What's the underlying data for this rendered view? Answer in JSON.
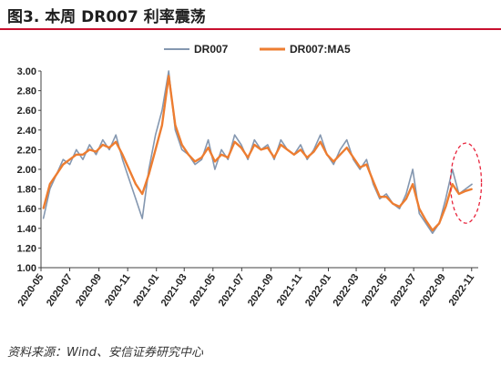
{
  "figure": {
    "title": "图3. 本周 DR007 利率震荡",
    "source": "资料来源：Wind、安信证券研究中心"
  },
  "colors": {
    "accent_rule": "#c8102e",
    "dr007": "#8497b0",
    "ma5": "#ed7d31",
    "highlight": "#e8243c"
  },
  "chart_data": {
    "type": "line",
    "title": "",
    "xlabel": "",
    "ylabel": "",
    "ylim": [
      1.0,
      3.0
    ],
    "yticks": [
      "3.00",
      "2.80",
      "2.60",
      "2.40",
      "2.20",
      "2.00",
      "1.80",
      "1.60",
      "1.40",
      "1.20",
      "1.00"
    ],
    "xticks": [
      "2020-05",
      "2020-07",
      "2020-09",
      "2020-11",
      "2021-01",
      "2021-03",
      "2021-05",
      "2021-07",
      "2021-09",
      "2021-11",
      "2022-01",
      "2022-03",
      "2022-05",
      "2022-07",
      "2022-09",
      "2022-11"
    ],
    "x_range": [
      "2020-05",
      "2022-11"
    ],
    "grid": false,
    "legend": "top-center",
    "series": [
      {
        "name": "DR007",
        "color": "#8497b0",
        "x": [
          "2020-05-06",
          "2020-05-20",
          "2020-06-03",
          "2020-06-17",
          "2020-07-01",
          "2020-07-15",
          "2020-07-29",
          "2020-08-12",
          "2020-08-26",
          "2020-09-09",
          "2020-09-23",
          "2020-10-07",
          "2020-10-21",
          "2020-11-04",
          "2020-11-18",
          "2020-12-02",
          "2020-12-16",
          "2020-12-30",
          "2021-01-13",
          "2021-01-27",
          "2021-02-10",
          "2021-02-24",
          "2021-03-10",
          "2021-03-24",
          "2021-04-07",
          "2021-04-21",
          "2021-05-05",
          "2021-05-19",
          "2021-06-02",
          "2021-06-16",
          "2021-06-30",
          "2021-07-14",
          "2021-07-28",
          "2021-08-11",
          "2021-08-25",
          "2021-09-08",
          "2021-09-22",
          "2021-10-06",
          "2021-10-20",
          "2021-11-03",
          "2021-11-17",
          "2021-12-01",
          "2021-12-15",
          "2021-12-29",
          "2022-01-12",
          "2022-01-26",
          "2022-02-09",
          "2022-02-23",
          "2022-03-09",
          "2022-03-23",
          "2022-04-06",
          "2022-04-20",
          "2022-05-04",
          "2022-05-18",
          "2022-06-01",
          "2022-06-15",
          "2022-06-29",
          "2022-07-13",
          "2022-07-27",
          "2022-08-10",
          "2022-08-24",
          "2022-09-07",
          "2022-09-21",
          "2022-10-05",
          "2022-10-19",
          "2022-11-02"
        ],
        "values": [
          1.5,
          1.8,
          1.95,
          2.1,
          2.05,
          2.2,
          2.1,
          2.25,
          2.15,
          2.3,
          2.2,
          2.35,
          2.1,
          1.9,
          1.7,
          1.5,
          2.0,
          2.35,
          2.6,
          3.0,
          2.4,
          2.2,
          2.15,
          2.05,
          2.1,
          2.3,
          2.0,
          2.2,
          2.1,
          2.35,
          2.25,
          2.1,
          2.3,
          2.2,
          2.25,
          2.1,
          2.3,
          2.2,
          2.15,
          2.25,
          2.1,
          2.2,
          2.35,
          2.15,
          2.05,
          2.2,
          2.3,
          2.1,
          2.0,
          2.1,
          1.85,
          1.7,
          1.75,
          1.65,
          1.6,
          1.75,
          2.0,
          1.55,
          1.45,
          1.35,
          1.45,
          1.7,
          2.0,
          1.75,
          1.8,
          1.85
        ]
      },
      {
        "name": "DR007:MA5",
        "color": "#ed7d31",
        "x": [
          "2020-05-06",
          "2020-05-20",
          "2020-06-03",
          "2020-06-17",
          "2020-07-01",
          "2020-07-15",
          "2020-07-29",
          "2020-08-12",
          "2020-08-26",
          "2020-09-09",
          "2020-09-23",
          "2020-10-07",
          "2020-10-21",
          "2020-11-04",
          "2020-11-18",
          "2020-12-02",
          "2020-12-16",
          "2020-12-30",
          "2021-01-13",
          "2021-01-27",
          "2021-02-10",
          "2021-02-24",
          "2021-03-10",
          "2021-03-24",
          "2021-04-07",
          "2021-04-21",
          "2021-05-05",
          "2021-05-19",
          "2021-06-02",
          "2021-06-16",
          "2021-06-30",
          "2021-07-14",
          "2021-07-28",
          "2021-08-11",
          "2021-08-25",
          "2021-09-08",
          "2021-09-22",
          "2021-10-06",
          "2021-10-20",
          "2021-11-03",
          "2021-11-17",
          "2021-12-01",
          "2021-12-15",
          "2021-12-29",
          "2022-01-12",
          "2022-01-26",
          "2022-02-09",
          "2022-02-23",
          "2022-03-09",
          "2022-03-23",
          "2022-04-06",
          "2022-04-20",
          "2022-05-04",
          "2022-05-18",
          "2022-06-01",
          "2022-06-15",
          "2022-06-29",
          "2022-07-13",
          "2022-07-27",
          "2022-08-10",
          "2022-08-24",
          "2022-09-07",
          "2022-09-21",
          "2022-10-05",
          "2022-10-19",
          "2022-11-02"
        ],
        "values": [
          1.6,
          1.85,
          1.95,
          2.05,
          2.1,
          2.15,
          2.15,
          2.2,
          2.18,
          2.25,
          2.22,
          2.28,
          2.15,
          2.0,
          1.85,
          1.75,
          1.95,
          2.2,
          2.45,
          2.95,
          2.45,
          2.25,
          2.15,
          2.08,
          2.12,
          2.22,
          2.08,
          2.15,
          2.12,
          2.28,
          2.22,
          2.12,
          2.25,
          2.2,
          2.22,
          2.12,
          2.25,
          2.2,
          2.15,
          2.2,
          2.12,
          2.18,
          2.28,
          2.15,
          2.08,
          2.15,
          2.22,
          2.12,
          2.02,
          2.05,
          1.88,
          1.72,
          1.72,
          1.65,
          1.62,
          1.7,
          1.85,
          1.6,
          1.48,
          1.38,
          1.45,
          1.62,
          1.85,
          1.75,
          1.78,
          1.8
        ]
      }
    ]
  }
}
